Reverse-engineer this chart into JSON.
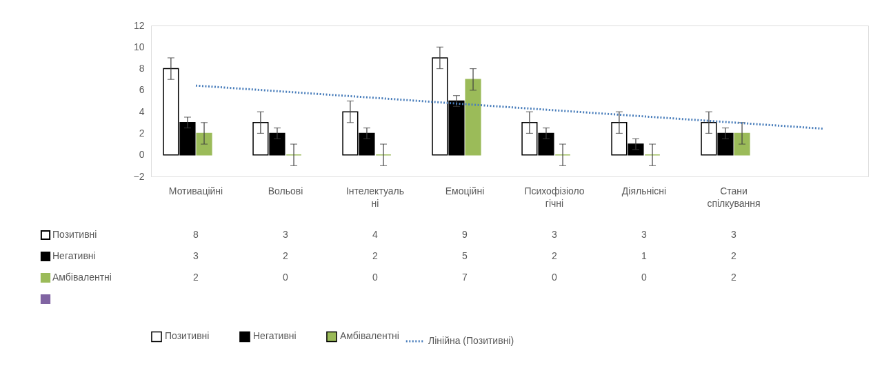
{
  "chart_data": {
    "type": "bar",
    "categories": [
      "Мотиваційні",
      "Вольові",
      "Інтелектуальні",
      "Емоційні",
      "Психофізіологічні",
      "Діяльнісні",
      "Стани спілкування",
      null
    ],
    "series": [
      {
        "name": "Позитивні",
        "color": "#ffffff",
        "values": [
          8,
          3,
          4,
          9,
          3,
          3,
          3,
          null
        ],
        "errors": [
          1,
          1,
          1,
          1,
          1,
          1,
          1,
          null
        ],
        "value_labels": [
          "8",
          "3",
          "4",
          "9",
          "3",
          "3",
          "3",
          null
        ]
      },
      {
        "name": "Негативні",
        "color": "#000000",
        "values": [
          3,
          2,
          2,
          5,
          2,
          1,
          2,
          null
        ],
        "errors": [
          0.5,
          0.5,
          0.5,
          0.5,
          0.5,
          0.5,
          0.5,
          null
        ],
        "value_labels": [
          "3",
          "2",
          "2",
          "5",
          "2",
          "1",
          "2",
          null
        ]
      },
      {
        "name": "Амбівалентні",
        "color": "#9bbb59",
        "values": [
          2,
          0,
          0,
          7,
          0,
          0,
          2,
          null
        ],
        "errors": [
          1,
          1,
          1,
          1,
          1,
          1,
          1,
          null
        ],
        "value_labels": [
          "2",
          "0",
          "0",
          "7",
          "0",
          "0",
          "2",
          null
        ]
      },
      {
        "color": "#8064a2",
        "values": [
          null,
          null,
          null,
          null,
          null,
          null,
          null,
          null
        ]
      },
      {
        "name": "Лінійна (Позитивні)",
        "type": "line",
        "color": "#4a7ebb",
        "line_style": "dotted",
        "values": [
          6.43,
          5.86,
          5.29,
          4.71,
          4.14,
          3.57,
          3.0,
          2.43
        ]
      }
    ],
    "ylim": [
      -2,
      12
    ],
    "yticks": [
      -2,
      0,
      2,
      4,
      6,
      8,
      10,
      12
    ],
    "legend": "bottom",
    "grid": false
  }
}
